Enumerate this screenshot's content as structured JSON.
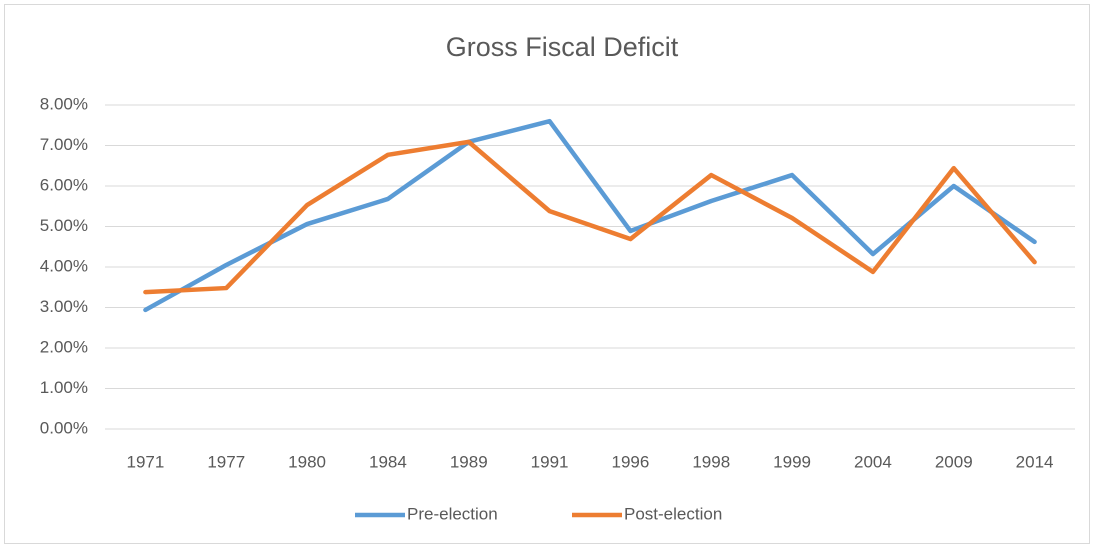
{
  "chart_data": {
    "type": "line",
    "title": "Gross Fiscal Deficit",
    "categories": [
      "1971",
      "1977",
      "1980",
      "1984",
      "1989",
      "1991",
      "1996",
      "1998",
      "1999",
      "2004",
      "2009",
      "2014"
    ],
    "series": [
      {
        "name": "Pre-election",
        "color": "#5b9bd5",
        "values": [
          2.94,
          4.05,
          5.06,
          5.68,
          7.09,
          7.6,
          4.89,
          5.63,
          6.27,
          4.32,
          6.0,
          4.62
        ]
      },
      {
        "name": "Post-election",
        "color": "#ed7d31",
        "values": [
          3.38,
          3.48,
          5.53,
          6.77,
          7.09,
          5.38,
          4.69,
          6.27,
          5.21,
          3.88,
          6.44,
          4.12
        ]
      }
    ],
    "ylim": [
      0,
      8
    ],
    "yticks": [
      {
        "value": 0,
        "label": "0.00%"
      },
      {
        "value": 1,
        "label": "1.00%"
      },
      {
        "value": 2,
        "label": "2.00%"
      },
      {
        "value": 3,
        "label": "3.00%"
      },
      {
        "value": 4,
        "label": "4.00%"
      },
      {
        "value": 5,
        "label": "5.00%"
      },
      {
        "value": 6,
        "label": "6.00%"
      },
      {
        "value": 7,
        "label": "7.00%"
      },
      {
        "value": 8,
        "label": "8.00%"
      }
    ],
    "grid": true,
    "legend": "bottom"
  }
}
